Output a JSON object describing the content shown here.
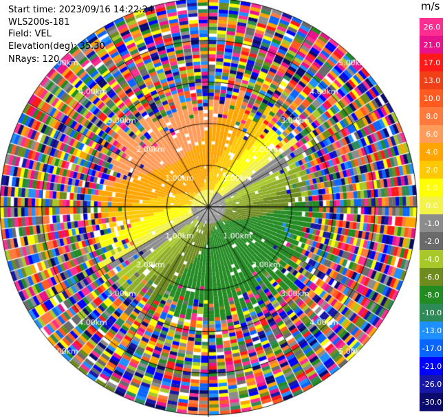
{
  "info": {
    "start_time": "Start time: 2023/09/16 14:22:24",
    "instrument": "WLS200s-181",
    "field": "Field: VEL",
    "elevation": "Elevation(deg): 35.30",
    "nrays": "NRays: 120"
  },
  "colorbar": {
    "unit": "m/s",
    "ticks": [
      "26.0",
      "21.0",
      "17.0",
      "13.0",
      "10.0",
      "8.0",
      "6.0",
      "4.0",
      "2.0",
      "1.0",
      "0.0",
      "-1.0",
      "-2.0",
      "-4.0",
      "-6.0",
      "-8.0",
      "-10.0",
      "-13.0",
      "-17.0",
      "-21.0",
      "-26.0",
      "-30.0"
    ],
    "colors": [
      "#ff2f92",
      "#e8128a",
      "#ff1a1a",
      "#f04018",
      "#ff5a1f",
      "#ff7a3d",
      "#ff9c5a",
      "#ffa500",
      "#ffc800",
      "#ffff00",
      "#f2f24a",
      "#8c8c8c",
      "#6a6a6a",
      "#a8c82a",
      "#6e8b1e",
      "#228b22",
      "#2e8b57",
      "#1e90ff",
      "#0a64ff",
      "#0000ff",
      "#1818a8",
      "#0b0b6e"
    ]
  },
  "chart_data": {
    "type": "ppi",
    "field": "VEL",
    "units": "m/s",
    "n_rays": 120,
    "range_rings_km": [
      1.0,
      2.0,
      3.0,
      4.0,
      5.0
    ],
    "ring_labels": [
      "1.00km",
      "2.00km",
      "3.00km",
      "4.00km",
      "5.00km"
    ],
    "max_range_km": 5.0,
    "vmin": -30.0,
    "vmax": 26.0,
    "approx_clean_velocity_region": {
      "north_and_west": "2.0 to 8.0 m/s (yellow/orange)",
      "south_and_east": "-2.0 to -8.0 m/s (olive/green)",
      "center": "0.0 to -1.0 m/s (gray)",
      "beyond_approx_km": 2.6
    }
  }
}
